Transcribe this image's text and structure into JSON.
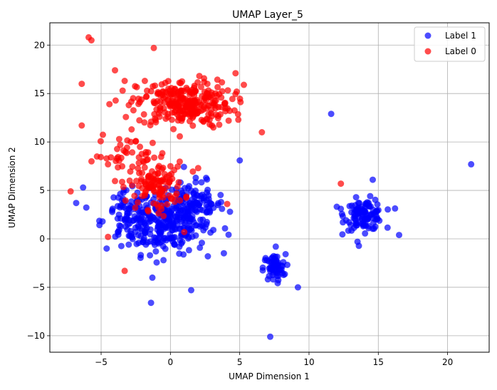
{
  "chart_data": {
    "type": "scatter",
    "title": "UMAP Layer_5",
    "xlabel": "UMAP Dimension 1",
    "ylabel": "UMAP Dimension 2",
    "xlim": [
      -8.7,
      23.0
    ],
    "ylim": [
      -11.7,
      22.3
    ],
    "xticks": [
      -5,
      0,
      5,
      10,
      15,
      20
    ],
    "yticks": [
      -10,
      -5,
      0,
      5,
      10,
      15,
      20
    ],
    "grid": true,
    "legend_position": "top-right",
    "series": [
      {
        "name": "Label 1",
        "color": "#0000ff",
        "clusters": [
          {
            "cx": -0.5,
            "cy": 1.5,
            "sx": 1.6,
            "sy": 1.5,
            "n": 260
          },
          {
            "cx": 1.5,
            "cy": 3.5,
            "sx": 1.2,
            "sy": 1.2,
            "n": 120
          },
          {
            "cx": -3.0,
            "cy": 2.5,
            "sx": 0.8,
            "sy": 1.2,
            "n": 60
          },
          {
            "cx": 14.0,
            "cy": 2.5,
            "sx": 0.7,
            "sy": 0.8,
            "n": 110
          },
          {
            "cx": 7.5,
            "cy": -3.0,
            "sx": 0.4,
            "sy": 0.7,
            "n": 60
          }
        ],
        "points": [
          [
            21.7,
            7.7
          ],
          [
            11.6,
            12.9
          ],
          [
            12.3,
            3.1
          ],
          [
            14.6,
            6.1
          ],
          [
            16.5,
            0.4
          ],
          [
            9.2,
            -5.0
          ],
          [
            7.2,
            -10.1
          ],
          [
            7.6,
            -0.8
          ],
          [
            5.0,
            8.1
          ],
          [
            4.3,
            2.8
          ],
          [
            1.5,
            -5.3
          ],
          [
            -1.4,
            -6.6
          ],
          [
            -1.3,
            -4.0
          ],
          [
            -6.8,
            3.7
          ],
          [
            -6.3,
            5.3
          ],
          [
            -4.6,
            -1.0
          ],
          [
            -4.9,
            1.8
          ],
          [
            -0.5,
            -2.2
          ],
          [
            2.7,
            -1.8
          ],
          [
            13.5,
            -0.3
          ]
        ]
      },
      {
        "name": "Label 0",
        "color": "#ff0000",
        "clusters": [
          {
            "cx": 1.0,
            "cy": 14.0,
            "sx": 1.7,
            "sy": 1.2,
            "n": 280
          },
          {
            "cx": -1.0,
            "cy": 5.5,
            "sx": 1.0,
            "sy": 1.2,
            "n": 110
          },
          {
            "cx": -2.8,
            "cy": 8.5,
            "sx": 1.3,
            "sy": 1.0,
            "n": 45
          }
        ],
        "points": [
          [
            -5.9,
            20.8
          ],
          [
            -5.7,
            20.5
          ],
          [
            -1.2,
            19.7
          ],
          [
            -6.4,
            16.0
          ],
          [
            -6.4,
            11.7
          ],
          [
            -4.4,
            13.9
          ],
          [
            -4.0,
            17.4
          ],
          [
            -4.5,
            7.7
          ],
          [
            -5.3,
            8.5
          ],
          [
            -7.2,
            4.9
          ],
          [
            -4.5,
            0.2
          ],
          [
            -3.3,
            -3.3
          ],
          [
            6.6,
            11.0
          ],
          [
            4.9,
            12.3
          ],
          [
            4.7,
            17.1
          ],
          [
            5.3,
            15.9
          ],
          [
            4.1,
            3.6
          ],
          [
            12.3,
            5.7
          ],
          [
            1.0,
            0.7
          ],
          [
            3.1,
            11.5
          ],
          [
            -2.8,
            11.3
          ],
          [
            -3.3,
            16.3
          ],
          [
            4.2,
            12.2
          ],
          [
            2.0,
            7.3
          ],
          [
            -3.0,
            13.8
          ]
        ]
      }
    ]
  }
}
